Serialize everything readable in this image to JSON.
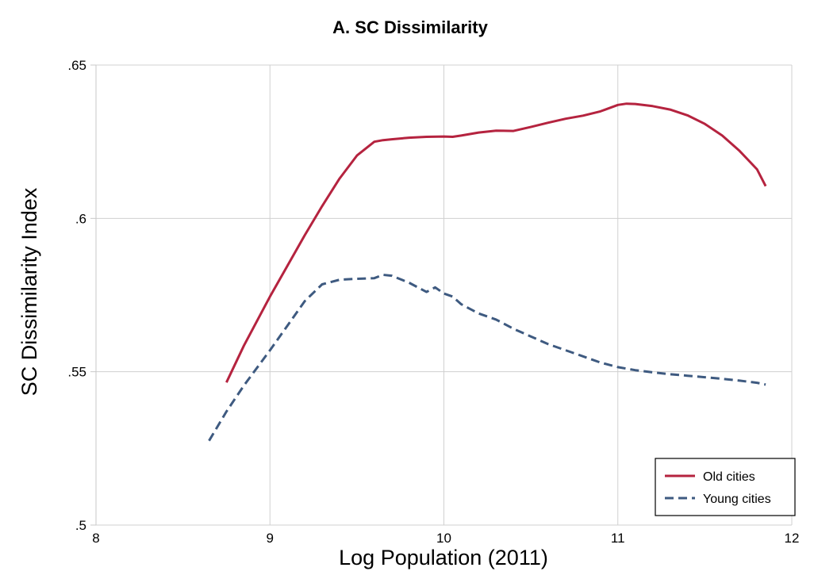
{
  "chart_data": {
    "type": "line",
    "title": "A. SC Dissimilarity",
    "xlabel": "Log Population (2011)",
    "ylabel": "SC Dissimilarity Index",
    "xlim": [
      8,
      12
    ],
    "ylim": [
      0.5,
      0.65
    ],
    "xticks": [
      8,
      9,
      10,
      11,
      12
    ],
    "xtick_labels": [
      "8",
      "9",
      "10",
      "11",
      "12"
    ],
    "yticks": [
      0.5,
      0.55,
      0.6,
      0.65
    ],
    "ytick_labels": [
      ".5",
      ".55",
      ".6",
      ".65"
    ],
    "grid": true,
    "legend_position": "bottom-right",
    "series": [
      {
        "name": "Old cities",
        "color": "#b5233f",
        "dash": "solid",
        "x": [
          8.75,
          8.85,
          9.0,
          9.1,
          9.2,
          9.3,
          9.4,
          9.5,
          9.6,
          9.65,
          9.7,
          9.8,
          9.9,
          10.0,
          10.05,
          10.1,
          10.2,
          10.3,
          10.4,
          10.5,
          10.6,
          10.7,
          10.8,
          10.9,
          11.0,
          11.05,
          11.1,
          11.2,
          11.3,
          11.4,
          11.5,
          11.6,
          11.7,
          11.75,
          11.8,
          11.85
        ],
        "y": [
          0.5465,
          0.5585,
          0.5745,
          0.5845,
          0.5945,
          0.604,
          0.613,
          0.6205,
          0.625,
          0.6255,
          0.6258,
          0.6263,
          0.6266,
          0.6267,
          0.6266,
          0.627,
          0.628,
          0.6286,
          0.6285,
          0.6298,
          0.6312,
          0.6325,
          0.6335,
          0.6349,
          0.637,
          0.6374,
          0.6373,
          0.6366,
          0.6355,
          0.6336,
          0.6308,
          0.627,
          0.622,
          0.619,
          0.616,
          0.6105
        ]
      },
      {
        "name": "Young cities",
        "color": "#3e5a80",
        "dash": "dashed",
        "x": [
          8.65,
          8.75,
          8.85,
          9.0,
          9.1,
          9.2,
          9.3,
          9.4,
          9.5,
          9.6,
          9.65,
          9.7,
          9.8,
          9.9,
          9.95,
          10.0,
          10.05,
          10.1,
          10.2,
          10.3,
          10.4,
          10.5,
          10.6,
          10.7,
          10.8,
          10.9,
          11.0,
          11.1,
          11.2,
          11.3,
          11.4,
          11.5,
          11.6,
          11.7,
          11.8,
          11.85
        ],
        "y": [
          0.5275,
          0.537,
          0.5455,
          0.557,
          0.565,
          0.573,
          0.5785,
          0.58,
          0.5803,
          0.5805,
          0.5816,
          0.5813,
          0.579,
          0.576,
          0.5775,
          0.5755,
          0.5745,
          0.572,
          0.569,
          0.567,
          0.564,
          0.5615,
          0.559,
          0.557,
          0.555,
          0.553,
          0.5515,
          0.5505,
          0.5498,
          0.5492,
          0.5487,
          0.5482,
          0.5477,
          0.5471,
          0.5464,
          0.5458
        ]
      }
    ]
  }
}
